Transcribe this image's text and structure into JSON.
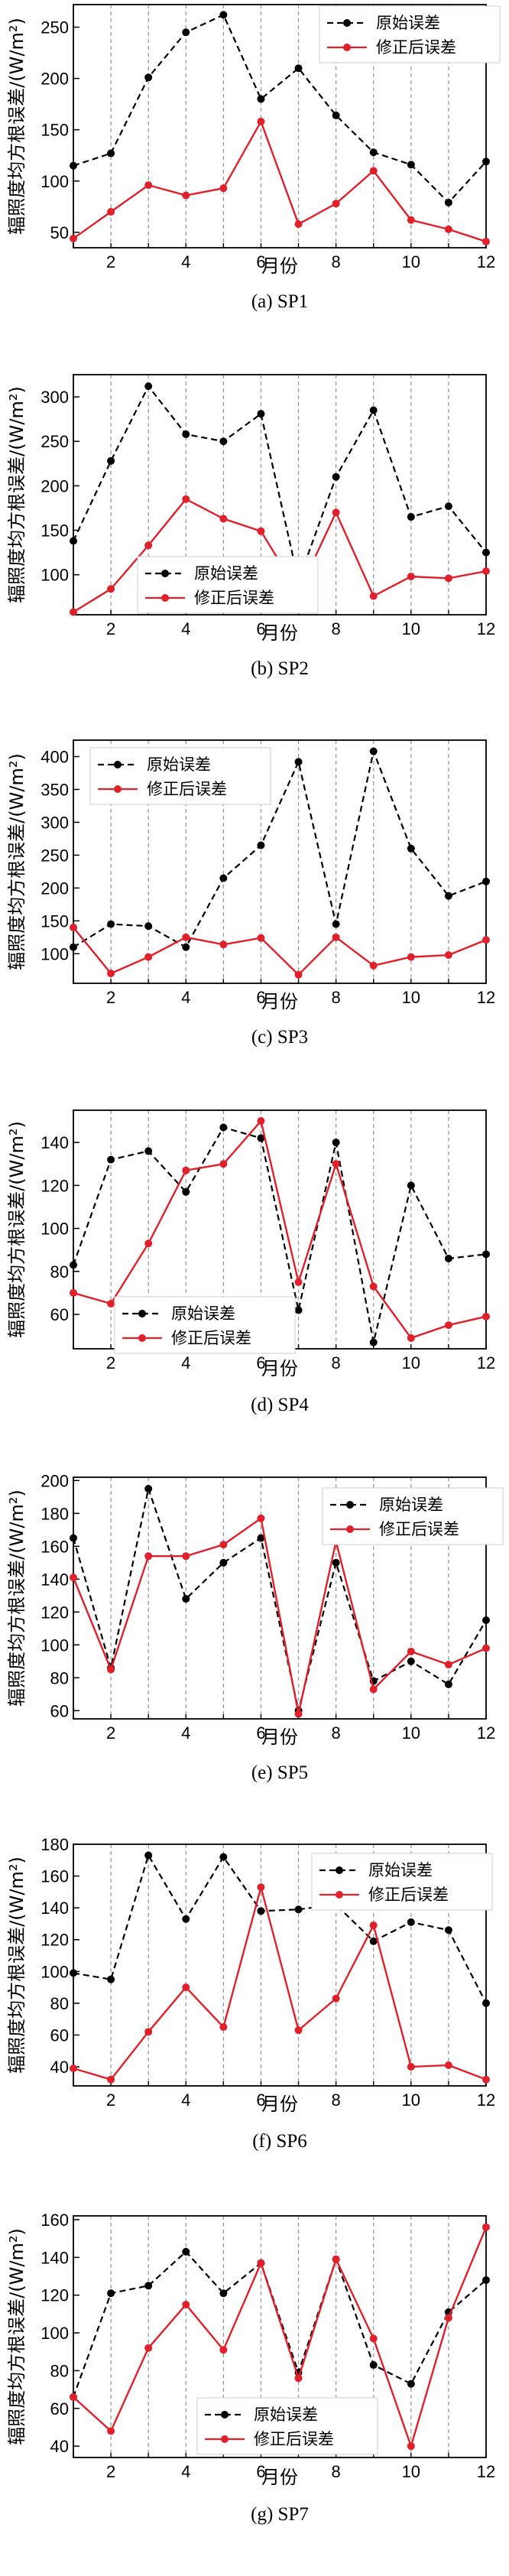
{
  "colors": {
    "original": "#000000",
    "corrected": "#e0202a",
    "grid": "#9a9a9a",
    "axis": "#000000"
  },
  "legend_labels": {
    "original": "原始误差",
    "corrected": "修正后误差"
  },
  "chart_data": [
    {
      "type": "line",
      "caption": "(a) SP1",
      "xlabel": "月份",
      "ylabel": "辐照度均方根误差/(W/m²)",
      "x": [
        1,
        2,
        3,
        4,
        5,
        6,
        7,
        8,
        9,
        10,
        11,
        12
      ],
      "xticks": [
        2,
        4,
        6,
        8,
        10,
        12
      ],
      "yticks": [
        50,
        100,
        150,
        200,
        250
      ],
      "xlim": [
        1,
        12
      ],
      "ylim": [
        35,
        272
      ],
      "grid": "x-dashed",
      "legend": "top-right",
      "series": [
        {
          "name": "原始误差",
          "style": "dashed-black-dots",
          "values": [
            115,
            127,
            201,
            245,
            262,
            180,
            210,
            164,
            128,
            116,
            79,
            119
          ]
        },
        {
          "name": "修正后误差",
          "style": "solid-red-dots",
          "values": [
            44,
            70,
            96,
            86,
            93,
            158,
            58,
            78,
            110,
            62,
            53,
            41
          ]
        }
      ]
    },
    {
      "type": "line",
      "caption": "(b) SP2",
      "xlabel": "月份",
      "ylabel": "辐照度均方根误差/(W/m²)",
      "x": [
        1,
        2,
        3,
        4,
        5,
        6,
        7,
        8,
        9,
        10,
        11,
        12
      ],
      "xticks": [
        2,
        4,
        6,
        8,
        10,
        12
      ],
      "yticks": [
        100,
        150,
        200,
        250,
        300
      ],
      "xlim": [
        1,
        12
      ],
      "ylim": [
        55,
        325
      ],
      "grid": "x-dashed",
      "legend": "center-left",
      "series": [
        {
          "name": "原始误差",
          "style": "dashed-black-dots",
          "values": [
            138,
            228,
            312,
            258,
            250,
            281,
            93,
            210,
            285,
            165,
            177,
            125
          ]
        },
        {
          "name": "修正后误差",
          "style": "solid-red-dots",
          "values": [
            58,
            84,
            133,
            185,
            163,
            149,
            80,
            170,
            76,
            98,
            96,
            104
          ]
        }
      ]
    },
    {
      "type": "line",
      "caption": "(c) SP3",
      "xlabel": "月份",
      "ylabel": "辐照度均方根误差/(W/m²)",
      "x": [
        1,
        2,
        3,
        4,
        5,
        6,
        7,
        8,
        9,
        10,
        11,
        12
      ],
      "xticks": [
        2,
        4,
        6,
        8,
        10,
        12
      ],
      "yticks": [
        100,
        150,
        200,
        250,
        300,
        350,
        400
      ],
      "xlim": [
        1,
        12
      ],
      "ylim": [
        55,
        425
      ],
      "grid": "x-dashed",
      "legend": "top-left",
      "series": [
        {
          "name": "原始误差",
          "style": "dashed-black-dots",
          "values": [
            110,
            145,
            142,
            110,
            215,
            265,
            392,
            145,
            408,
            260,
            188,
            210
          ]
        },
        {
          "name": "修正后误差",
          "style": "solid-red-dots",
          "values": [
            140,
            70,
            95,
            125,
            114,
            124,
            68,
            125,
            82,
            95,
            98,
            121
          ]
        }
      ]
    },
    {
      "type": "line",
      "caption": "(d) SP4",
      "xlabel": "月份",
      "ylabel": "辐照度均方根误差/(W/m²)",
      "x": [
        1,
        2,
        3,
        4,
        5,
        6,
        7,
        8,
        9,
        10,
        11,
        12
      ],
      "xticks": [
        2,
        4,
        6,
        8,
        10,
        12
      ],
      "yticks": [
        60,
        80,
        100,
        120,
        140
      ],
      "xlim": [
        1,
        12
      ],
      "ylim": [
        44,
        155
      ],
      "grid": "x-dashed",
      "legend": "bottom-left",
      "series": [
        {
          "name": "原始误差",
          "style": "dashed-black-dots",
          "values": [
            83,
            132,
            136,
            117,
            147,
            142,
            62,
            140,
            47,
            120,
            86,
            88
          ]
        },
        {
          "name": "修正后误差",
          "style": "solid-red-dots",
          "values": [
            70,
            65,
            93,
            127,
            130,
            150,
            75,
            130,
            73,
            49,
            55,
            59
          ]
        }
      ]
    },
    {
      "type": "line",
      "caption": "(e) SP5",
      "xlabel": "月份",
      "ylabel": "辐照度均方根误差/(W/m²)",
      "x": [
        1,
        2,
        3,
        4,
        5,
        6,
        7,
        8,
        9,
        10,
        11,
        12
      ],
      "xticks": [
        2,
        4,
        6,
        8,
        10,
        12
      ],
      "yticks": [
        60,
        80,
        100,
        120,
        140,
        160,
        180,
        200
      ],
      "xlim": [
        1,
        12
      ],
      "ylim": [
        55,
        202
      ],
      "grid": "x-dashed",
      "legend": "top-right",
      "series": [
        {
          "name": "原始误差",
          "style": "dashed-black-dots",
          "values": [
            165,
            86,
            195,
            128,
            150,
            165,
            60,
            150,
            78,
            90,
            76,
            115
          ]
        },
        {
          "name": "修正后误差",
          "style": "solid-red-dots",
          "values": [
            141,
            85,
            154,
            154,
            161,
            177,
            58,
            163,
            73,
            96,
            88,
            98
          ]
        }
      ]
    },
    {
      "type": "line",
      "caption": "(f) SP6",
      "xlabel": "月份",
      "ylabel": "辐照度均方根误差/(W/m²)",
      "x": [
        1,
        2,
        3,
        4,
        5,
        6,
        7,
        8,
        9,
        10,
        11,
        12
      ],
      "xticks": [
        2,
        4,
        6,
        8,
        10,
        12
      ],
      "yticks": [
        40,
        60,
        80,
        100,
        120,
        140,
        160,
        180
      ],
      "xlim": [
        1,
        12
      ],
      "ylim": [
        28,
        180
      ],
      "grid": "x-dashed",
      "legend": "top-right",
      "series": [
        {
          "name": "原始误差",
          "style": "dashed-black-dots",
          "values": [
            99,
            95,
            173,
            133,
            172,
            138,
            139,
            142,
            119,
            131,
            126,
            80
          ]
        },
        {
          "name": "修正后误差",
          "style": "solid-red-dots",
          "values": [
            39,
            32,
            62,
            90,
            65,
            153,
            63,
            83,
            129,
            40,
            41,
            32
          ]
        }
      ]
    },
    {
      "type": "line",
      "caption": "(g) SP7",
      "xlabel": "月份",
      "ylabel": "辐照度均方根误差/(W/m²)",
      "x": [
        1,
        2,
        3,
        4,
        5,
        6,
        7,
        8,
        9,
        10,
        11,
        12
      ],
      "xticks": [
        2,
        4,
        6,
        8,
        10,
        12
      ],
      "yticks": [
        40,
        60,
        80,
        100,
        120,
        140,
        160
      ],
      "xlim": [
        1,
        12
      ],
      "ylim": [
        34,
        162
      ],
      "grid": "x-dashed",
      "legend": "bottom-left",
      "series": [
        {
          "name": "原始误差",
          "style": "dashed-black-dots",
          "values": [
            66,
            121,
            125,
            143,
            121,
            137,
            79,
            139,
            83,
            73,
            111,
            128
          ]
        },
        {
          "name": "修正后误差",
          "style": "solid-red-dots",
          "values": [
            66,
            48,
            92,
            115,
            91,
            137,
            76,
            139,
            97,
            40,
            108,
            156
          ]
        }
      ]
    }
  ]
}
